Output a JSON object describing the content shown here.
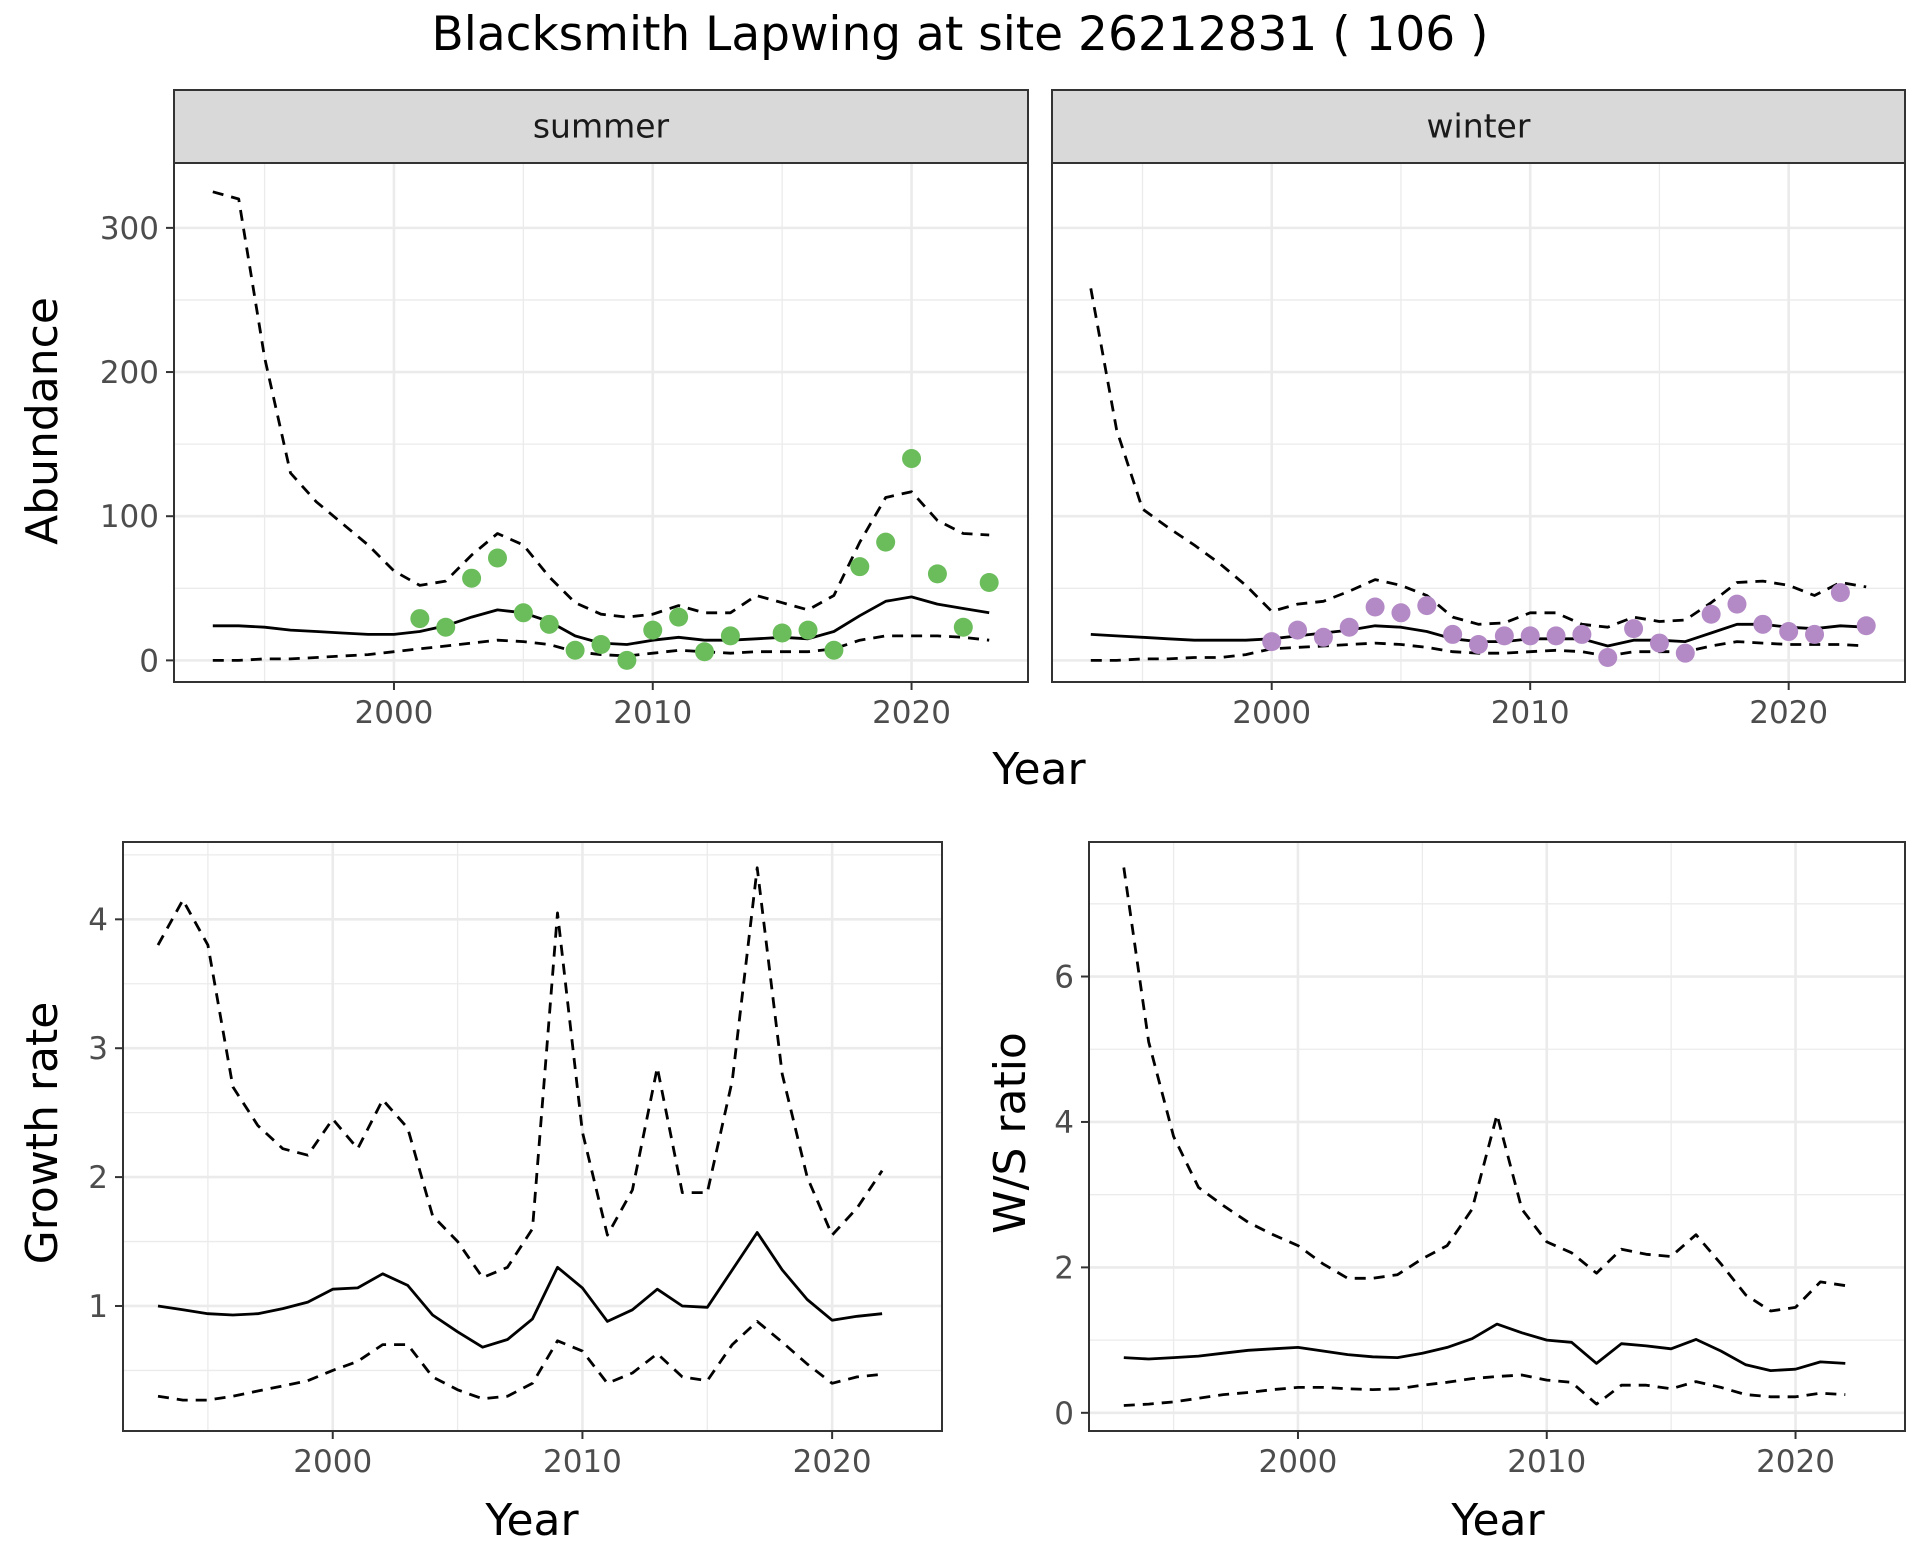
{
  "title": "Blacksmith Lapwing at site 26212831 ( 106 )",
  "colors": {
    "summer_points": "#6bbd5b",
    "winter_points": "#b48ac6",
    "lines": "#000000",
    "strip_bg": "#d9d9d9",
    "grid": "#ebebeb"
  },
  "chart_data": [
    {
      "type": "line",
      "panel": "summer",
      "xlabel": "Year",
      "ylabel": "Abundance",
      "xlim": [
        1991.5,
        2024.5
      ],
      "ylim": [
        -15,
        345
      ],
      "x_ticks": [
        2000,
        2010,
        2020
      ],
      "y_ticks": [
        0,
        100,
        200,
        300
      ],
      "grid": true,
      "series": [
        {
          "style": "solid",
          "x": [
            1993,
            1994,
            1995,
            1996,
            1997,
            1998,
            1999,
            2000,
            2001,
            2002,
            2003,
            2004,
            2005,
            2006,
            2007,
            2008,
            2009,
            2010,
            2011,
            2012,
            2013,
            2014,
            2015,
            2016,
            2017,
            2018,
            2019,
            2020,
            2021,
            2022,
            2023
          ],
          "values": [
            24,
            24,
            23,
            21,
            20,
            19,
            18,
            18,
            20,
            24,
            30,
            35,
            33,
            27,
            17,
            12,
            11,
            14,
            16,
            14,
            14,
            15,
            16,
            15,
            20,
            31,
            41,
            44,
            39,
            36,
            33
          ]
        },
        {
          "style": "dashed",
          "x": [
            1993,
            1994,
            1995,
            1996,
            1997,
            1998,
            1999,
            2000,
            2001,
            2002,
            2003,
            2004,
            2005,
            2006,
            2007,
            2008,
            2009,
            2010,
            2011,
            2012,
            2013,
            2014,
            2015,
            2016,
            2017,
            2018,
            2019,
            2020,
            2021,
            2022,
            2023
          ],
          "values": [
            325,
            320,
            210,
            130,
            110,
            95,
            80,
            62,
            52,
            55,
            73,
            88,
            80,
            58,
            40,
            32,
            30,
            32,
            38,
            33,
            33,
            45,
            40,
            35,
            45,
            82,
            113,
            117,
            97,
            88,
            87
          ]
        },
        {
          "style": "dashed",
          "x": [
            1993,
            1994,
            1995,
            1996,
            1997,
            1998,
            1999,
            2000,
            2001,
            2002,
            2003,
            2004,
            2005,
            2006,
            2007,
            2008,
            2009,
            2010,
            2011,
            2012,
            2013,
            2014,
            2015,
            2016,
            2017,
            2018,
            2019,
            2020,
            2021,
            2022,
            2023
          ],
          "values": [
            0,
            0,
            1,
            1,
            2,
            3,
            4,
            6,
            8,
            10,
            12,
            14,
            13,
            11,
            6,
            4,
            3,
            5,
            7,
            6,
            5,
            6,
            6,
            6,
            8,
            14,
            17,
            17,
            17,
            16,
            14
          ]
        },
        {
          "style": "points",
          "x": [
            2001,
            2002,
            2003,
            2004,
            2005,
            2006,
            2007,
            2008,
            2009,
            2010,
            2011,
            2012,
            2013,
            2015,
            2016,
            2017,
            2018,
            2019,
            2020,
            2021,
            2022,
            2023
          ],
          "values": [
            29,
            23,
            57,
            71,
            33,
            25,
            7,
            11,
            0,
            21,
            30,
            6,
            17,
            19,
            21,
            7,
            65,
            82,
            140,
            60,
            23,
            54
          ]
        }
      ]
    },
    {
      "type": "line",
      "panel": "winter",
      "xlabel": "Year",
      "ylabel": "Abundance",
      "xlim": [
        1991.5,
        2024.5
      ],
      "ylim": [
        -15,
        345
      ],
      "x_ticks": [
        2000,
        2010,
        2020
      ],
      "y_ticks": [
        0,
        100,
        200,
        300
      ],
      "grid": true,
      "series": [
        {
          "style": "solid",
          "x": [
            1993,
            1994,
            1995,
            1996,
            1997,
            1998,
            1999,
            2000,
            2001,
            2002,
            2003,
            2004,
            2005,
            2006,
            2007,
            2008,
            2009,
            2010,
            2011,
            2012,
            2013,
            2014,
            2015,
            2016,
            2017,
            2018,
            2019,
            2020,
            2021,
            2022,
            2023
          ],
          "values": [
            18,
            17,
            16,
            15,
            14,
            14,
            14,
            15,
            17,
            19,
            21,
            24,
            23,
            20,
            15,
            13,
            13,
            15,
            15,
            15,
            10,
            14,
            14,
            13,
            19,
            25,
            25,
            23,
            22,
            24,
            23
          ]
        },
        {
          "style": "dashed",
          "x": [
            1993,
            1994,
            1995,
            1996,
            1997,
            1998,
            1999,
            2000,
            2001,
            2002,
            2003,
            2004,
            2005,
            2006,
            2007,
            2008,
            2009,
            2010,
            2011,
            2012,
            2013,
            2014,
            2015,
            2016,
            2017,
            2018,
            2019,
            2020,
            2021,
            2022,
            2023
          ],
          "values": [
            258,
            160,
            105,
            92,
            80,
            67,
            52,
            34,
            39,
            41,
            48,
            56,
            52,
            45,
            30,
            25,
            26,
            33,
            33,
            25,
            23,
            30,
            27,
            28,
            40,
            54,
            55,
            52,
            45,
            54,
            51
          ]
        },
        {
          "style": "dashed",
          "x": [
            1993,
            1994,
            1995,
            1996,
            1997,
            1998,
            1999,
            2000,
            2001,
            2002,
            2003,
            2004,
            2005,
            2006,
            2007,
            2008,
            2009,
            2010,
            2011,
            2012,
            2013,
            2014,
            2015,
            2016,
            2017,
            2018,
            2019,
            2020,
            2021,
            2022,
            2023
          ],
          "values": [
            0,
            0,
            1,
            1,
            2,
            2,
            4,
            8,
            9,
            10,
            11,
            12,
            11,
            9,
            6,
            5,
            5,
            6,
            7,
            6,
            3,
            6,
            6,
            6,
            10,
            13,
            12,
            11,
            11,
            11,
            10
          ]
        },
        {
          "style": "points",
          "x": [
            2000,
            2001,
            2002,
            2003,
            2004,
            2005,
            2006,
            2007,
            2008,
            2009,
            2010,
            2011,
            2012,
            2013,
            2014,
            2015,
            2016,
            2017,
            2018,
            2019,
            2020,
            2021,
            2022,
            2023
          ],
          "values": [
            13,
            21,
            16,
            23,
            37,
            33,
            38,
            18,
            11,
            17,
            17,
            17,
            18,
            2,
            22,
            12,
            5,
            32,
            39,
            25,
            20,
            18,
            47,
            24
          ]
        }
      ]
    },
    {
      "type": "line",
      "panel": "growth",
      "xlabel": "Year",
      "ylabel": "Growth rate",
      "xlim": [
        1991.6,
        2024.4
      ],
      "ylim": [
        0.03,
        4.6
      ],
      "x_ticks": [
        2000,
        2010,
        2020
      ],
      "y_ticks": [
        1,
        2,
        3,
        4
      ],
      "grid": true,
      "series": [
        {
          "style": "solid",
          "x": [
            1993,
            1994,
            1995,
            1996,
            1997,
            1998,
            1999,
            2000,
            2001,
            2002,
            2003,
            2004,
            2005,
            2006,
            2007,
            2008,
            2009,
            2010,
            2011,
            2012,
            2013,
            2014,
            2015,
            2016,
            2017,
            2018,
            2019,
            2020,
            2021,
            2022
          ],
          "values": [
            1.0,
            0.97,
            0.94,
            0.93,
            0.94,
            0.98,
            1.03,
            1.13,
            1.14,
            1.25,
            1.16,
            0.93,
            0.8,
            0.68,
            0.74,
            0.9,
            1.3,
            1.14,
            0.88,
            0.97,
            1.13,
            1.0,
            0.99,
            1.28,
            1.57,
            1.28,
            1.05,
            0.89,
            0.92,
            0.94
          ]
        },
        {
          "style": "dashed",
          "x": [
            1993,
            1994,
            1995,
            1996,
            1997,
            1998,
            1999,
            2000,
            2001,
            2002,
            2003,
            2004,
            2005,
            2006,
            2007,
            2008,
            2009,
            2010,
            2011,
            2012,
            2013,
            2014,
            2015,
            2016,
            2017,
            2018,
            2019,
            2020,
            2021,
            2022
          ],
          "values": [
            3.8,
            4.15,
            3.8,
            2.7,
            2.4,
            2.22,
            2.17,
            2.45,
            2.22,
            2.6,
            2.38,
            1.7,
            1.5,
            1.22,
            1.3,
            1.6,
            4.05,
            2.35,
            1.55,
            1.9,
            2.85,
            1.88,
            1.88,
            2.75,
            4.4,
            2.8,
            2.0,
            1.55,
            1.76,
            2.05
          ]
        },
        {
          "style": "dashed",
          "x": [
            1993,
            1994,
            1995,
            1996,
            1997,
            1998,
            1999,
            2000,
            2001,
            2002,
            2003,
            2004,
            2005,
            2006,
            2007,
            2008,
            2009,
            2010,
            2011,
            2012,
            2013,
            2014,
            2015,
            2016,
            2017,
            2018,
            2019,
            2020,
            2021,
            2022
          ],
          "values": [
            0.3,
            0.27,
            0.27,
            0.3,
            0.34,
            0.38,
            0.42,
            0.5,
            0.57,
            0.7,
            0.7,
            0.45,
            0.35,
            0.28,
            0.3,
            0.4,
            0.73,
            0.65,
            0.4,
            0.48,
            0.63,
            0.45,
            0.42,
            0.7,
            0.88,
            0.72,
            0.55,
            0.4,
            0.45,
            0.47
          ]
        }
      ]
    },
    {
      "type": "line",
      "panel": "ratio",
      "xlabel": "Year",
      "ylabel": "W/S ratio",
      "xlim": [
        1991.6,
        2024.4
      ],
      "ylim": [
        -0.25,
        7.85
      ],
      "x_ticks": [
        2000,
        2010,
        2020
      ],
      "y_ticks": [
        0,
        2,
        4,
        6
      ],
      "grid": true,
      "series": [
        {
          "style": "solid",
          "x": [
            1993,
            1994,
            1995,
            1996,
            1997,
            1998,
            1999,
            2000,
            2001,
            2002,
            2003,
            2004,
            2005,
            2006,
            2007,
            2008,
            2009,
            2010,
            2011,
            2012,
            2013,
            2014,
            2015,
            2016,
            2017,
            2018,
            2019,
            2020,
            2021,
            2022
          ],
          "values": [
            0.76,
            0.74,
            0.76,
            0.78,
            0.82,
            0.86,
            0.88,
            0.9,
            0.85,
            0.8,
            0.77,
            0.76,
            0.82,
            0.9,
            1.02,
            1.22,
            1.1,
            1.0,
            0.97,
            0.68,
            0.95,
            0.92,
            0.88,
            1.01,
            0.85,
            0.66,
            0.58,
            0.6,
            0.7,
            0.68
          ]
        },
        {
          "style": "dashed",
          "x": [
            1993,
            1994,
            1995,
            1996,
            1997,
            1998,
            1999,
            2000,
            2001,
            2002,
            2003,
            2004,
            2005,
            2006,
            2007,
            2008,
            2009,
            2010,
            2011,
            2012,
            2013,
            2014,
            2015,
            2016,
            2017,
            2018,
            2019,
            2020,
            2021,
            2022
          ],
          "values": [
            7.5,
            5.1,
            3.8,
            3.1,
            2.85,
            2.62,
            2.45,
            2.3,
            2.05,
            1.85,
            1.85,
            1.9,
            2.12,
            2.3,
            2.8,
            4.1,
            2.8,
            2.35,
            2.2,
            1.92,
            2.25,
            2.18,
            2.15,
            2.45,
            2.05,
            1.62,
            1.4,
            1.45,
            1.8,
            1.75
          ]
        },
        {
          "style": "dashed",
          "x": [
            1993,
            1994,
            1995,
            1996,
            1997,
            1998,
            1999,
            2000,
            2001,
            2002,
            2003,
            2004,
            2005,
            2006,
            2007,
            2008,
            2009,
            2010,
            2011,
            2012,
            2013,
            2014,
            2015,
            2016,
            2017,
            2018,
            2019,
            2020,
            2021,
            2022
          ],
          "values": [
            0.1,
            0.12,
            0.15,
            0.2,
            0.25,
            0.28,
            0.32,
            0.35,
            0.35,
            0.33,
            0.32,
            0.33,
            0.38,
            0.42,
            0.47,
            0.5,
            0.52,
            0.45,
            0.42,
            0.12,
            0.38,
            0.38,
            0.33,
            0.43,
            0.35,
            0.25,
            0.22,
            0.22,
            0.27,
            0.25
          ]
        }
      ]
    }
  ]
}
